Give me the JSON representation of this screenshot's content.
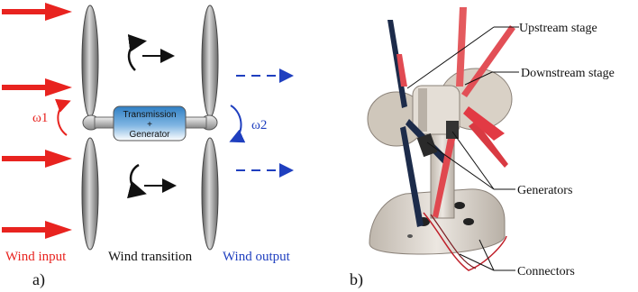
{
  "panel_a": {
    "label": "a)",
    "wind_input": "Wind input",
    "wind_transition": "Wind transition",
    "wind_output": "Wind output",
    "box_line1": "Transmission",
    "box_line2": "+",
    "box_line3": "Generator",
    "omega1": "ω1",
    "omega2": "ω2",
    "colors": {
      "input": "#e8231f",
      "output": "#1f3fbf",
      "box": "#3a86c6"
    }
  },
  "panel_b": {
    "label": "b)",
    "callouts": {
      "upstream": "Upstream stage",
      "downstream": "Downstream stage",
      "generators": "Generators",
      "connectors": "Connectors"
    }
  }
}
